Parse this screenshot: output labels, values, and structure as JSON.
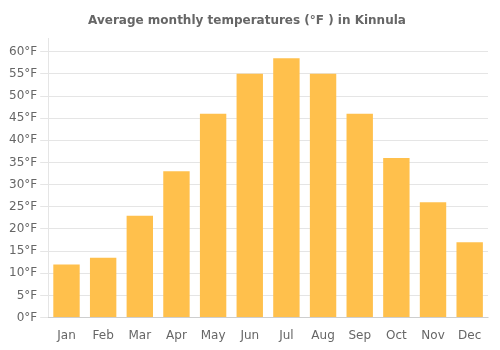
{
  "chart_data": {
    "type": "bar",
    "title": "Average monthly temperatures (°F ) in Kinnula",
    "categories": [
      "Jan",
      "Feb",
      "Mar",
      "Apr",
      "May",
      "Jun",
      "Jul",
      "Aug",
      "Sep",
      "Oct",
      "Nov",
      "Dec"
    ],
    "values": [
      12,
      13.5,
      23,
      33,
      46,
      55,
      58.5,
      55,
      46,
      36,
      26,
      17
    ],
    "color": "#FFC04C",
    "ylim": [
      0,
      63
    ],
    "yticks": [
      {
        "value": 0,
        "label": "0°F"
      },
      {
        "value": 5,
        "label": "5°F"
      },
      {
        "value": 10,
        "label": "10°F"
      },
      {
        "value": 15,
        "label": "15°F"
      },
      {
        "value": 20,
        "label": "20°F"
      },
      {
        "value": 25,
        "label": "25°F"
      },
      {
        "value": 30,
        "label": "30°F"
      },
      {
        "value": 35,
        "label": "35°F"
      },
      {
        "value": 40,
        "label": "40°F"
      },
      {
        "value": 45,
        "label": "45°F"
      },
      {
        "value": 50,
        "label": "50°F"
      },
      {
        "value": 55,
        "label": "55°F"
      },
      {
        "value": 60,
        "label": "60°F"
      }
    ],
    "grid": true
  }
}
